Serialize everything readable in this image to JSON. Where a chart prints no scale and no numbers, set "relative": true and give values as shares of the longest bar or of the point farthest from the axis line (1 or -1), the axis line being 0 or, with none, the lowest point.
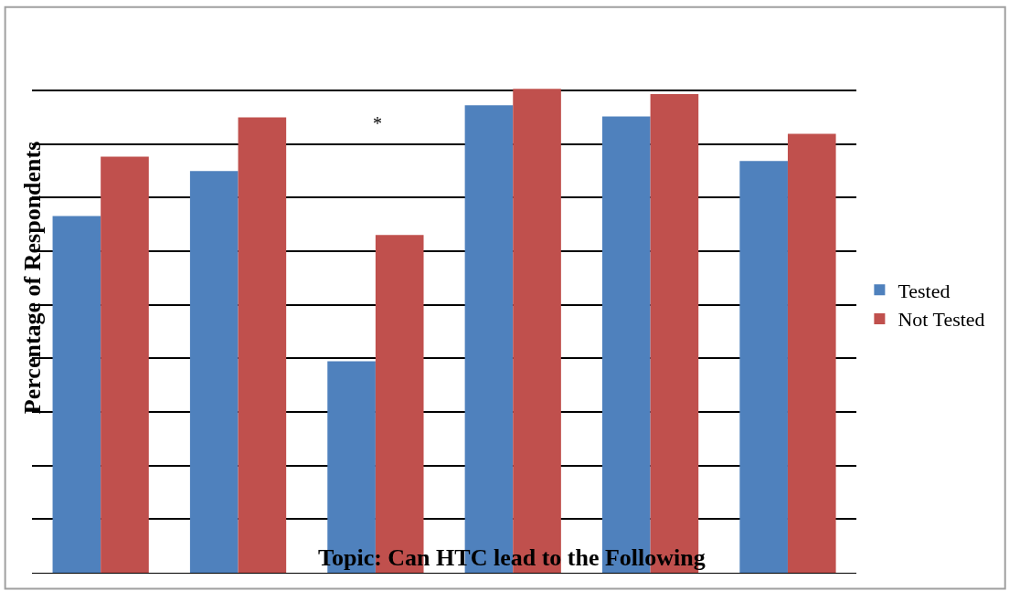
{
  "chart_data": {
    "type": "bar",
    "relative": true,
    "xlabel": "Topic: Can HTC lead to the Following",
    "ylabel": "Percentage of Respondents",
    "annotations": [
      "*"
    ],
    "categories": [
      null,
      null,
      null,
      null,
      null,
      null
    ],
    "series": [
      {
        "name": "Tested",
        "color": "#4f81bd",
        "values": [
          0.737,
          0.83,
          0.437,
          0.966,
          0.943,
          0.851
        ]
      },
      {
        "name": "Not Tested",
        "color": "#c0504d",
        "values": [
          0.86,
          0.941,
          0.698,
          1.0,
          0.989,
          0.907
        ]
      }
    ],
    "grid": "y",
    "legend": "right"
  }
}
